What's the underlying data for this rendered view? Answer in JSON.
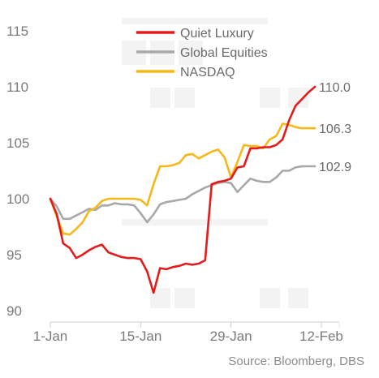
{
  "chart_data": {
    "type": "line",
    "title": "",
    "xlabel": "",
    "ylabel": "",
    "ylim": [
      90,
      115
    ],
    "y_ticks": [
      115,
      110,
      105,
      100,
      95,
      90
    ],
    "x_ticks": [
      {
        "label": "1-Jan",
        "day": 0
      },
      {
        "label": "15-Jan",
        "day": 14
      },
      {
        "label": "29-Jan",
        "day": 28
      },
      {
        "label": "12-Feb",
        "day": 42
      }
    ],
    "grid": false,
    "legend_position": "top-center",
    "source": "Source: Bloomberg, DBS",
    "series": [
      {
        "name": "Quiet Luxury",
        "color": "#e31b1b",
        "end_label": "110.0",
        "points": [
          [
            0,
            100
          ],
          [
            1,
            98.6
          ],
          [
            2,
            96.0
          ],
          [
            3,
            95.6
          ],
          [
            4,
            94.7
          ],
          [
            5,
            95.0
          ],
          [
            6,
            95.4
          ],
          [
            7,
            95.7
          ],
          [
            8,
            95.9
          ],
          [
            9,
            95.2
          ],
          [
            10,
            95.0
          ],
          [
            11,
            94.8
          ],
          [
            12,
            94.7
          ],
          [
            13,
            94.7
          ],
          [
            14,
            94.6
          ],
          [
            15,
            93.5
          ],
          [
            16,
            91.6
          ],
          [
            17,
            93.8
          ],
          [
            18,
            93.7
          ],
          [
            19,
            93.9
          ],
          [
            20,
            94.0
          ],
          [
            21,
            94.2
          ],
          [
            22,
            94.1
          ],
          [
            23,
            94.2
          ],
          [
            24,
            94.5
          ],
          [
            25,
            101.3
          ],
          [
            26,
            101.5
          ],
          [
            27,
            101.6
          ],
          [
            28,
            101.8
          ],
          [
            29,
            102.8
          ],
          [
            30,
            102.9
          ],
          [
            31,
            104.5
          ],
          [
            32,
            104.5
          ],
          [
            33,
            104.6
          ],
          [
            34,
            104.6
          ],
          [
            35,
            104.8
          ],
          [
            36,
            105.3
          ],
          [
            37,
            107.0
          ],
          [
            38,
            108.3
          ],
          [
            39,
            108.9
          ],
          [
            40,
            109.5
          ],
          [
            41,
            110.0
          ]
        ]
      },
      {
        "name": "Global Equities",
        "color": "#a8a8a8",
        "end_label": "102.9",
        "points": [
          [
            0,
            100
          ],
          [
            1,
            99.3
          ],
          [
            2,
            98.2
          ],
          [
            3,
            98.2
          ],
          [
            4,
            98.5
          ],
          [
            5,
            98.8
          ],
          [
            6,
            99.1
          ],
          [
            7,
            99.0
          ],
          [
            8,
            99.4
          ],
          [
            9,
            99.4
          ],
          [
            10,
            99.6
          ],
          [
            11,
            99.5
          ],
          [
            12,
            99.5
          ],
          [
            13,
            99.4
          ],
          [
            14,
            98.7
          ],
          [
            15,
            97.9
          ],
          [
            16,
            98.6
          ],
          [
            17,
            99.5
          ],
          [
            18,
            99.7
          ],
          [
            19,
            99.8
          ],
          [
            20,
            99.9
          ],
          [
            21,
            100.0
          ],
          [
            22,
            100.4
          ],
          [
            23,
            100.7
          ],
          [
            24,
            101.0
          ],
          [
            25,
            101.2
          ],
          [
            26,
            101.4
          ],
          [
            27,
            101.5
          ],
          [
            28,
            101.4
          ],
          [
            29,
            100.6
          ],
          [
            30,
            101.2
          ],
          [
            31,
            101.8
          ],
          [
            32,
            101.6
          ],
          [
            33,
            101.5
          ],
          [
            34,
            101.5
          ],
          [
            35,
            101.9
          ],
          [
            36,
            102.5
          ],
          [
            37,
            102.5
          ],
          [
            38,
            102.8
          ],
          [
            39,
            102.9
          ],
          [
            40,
            102.9
          ],
          [
            41,
            102.9
          ]
        ]
      },
      {
        "name": "NASDAQ",
        "color": "#f5b818",
        "end_label": "106.3",
        "points": [
          [
            0,
            100
          ],
          [
            1,
            98.4
          ],
          [
            2,
            96.9
          ],
          [
            3,
            96.8
          ],
          [
            4,
            97.3
          ],
          [
            5,
            97.9
          ],
          [
            6,
            98.9
          ],
          [
            7,
            99.2
          ],
          [
            8,
            99.8
          ],
          [
            9,
            100.0
          ],
          [
            10,
            100.0
          ],
          [
            11,
            100.0
          ],
          [
            12,
            100.0
          ],
          [
            13,
            100.0
          ],
          [
            14,
            99.9
          ],
          [
            15,
            99.4
          ],
          [
            16,
            101.3
          ],
          [
            17,
            102.9
          ],
          [
            18,
            102.9
          ],
          [
            19,
            103.0
          ],
          [
            20,
            103.2
          ],
          [
            21,
            103.9
          ],
          [
            22,
            104.0
          ],
          [
            23,
            103.6
          ],
          [
            24,
            103.9
          ],
          [
            25,
            104.2
          ],
          [
            26,
            104.4
          ],
          [
            27,
            103.7
          ],
          [
            28,
            101.9
          ],
          [
            29,
            103.3
          ],
          [
            30,
            104.8
          ],
          [
            31,
            104.7
          ],
          [
            32,
            104.7
          ],
          [
            33,
            104.5
          ],
          [
            34,
            105.3
          ],
          [
            35,
            105.6
          ],
          [
            36,
            106.7
          ],
          [
            37,
            106.6
          ],
          [
            38,
            106.4
          ],
          [
            39,
            106.3
          ],
          [
            40,
            106.3
          ],
          [
            41,
            106.3
          ]
        ]
      }
    ]
  }
}
